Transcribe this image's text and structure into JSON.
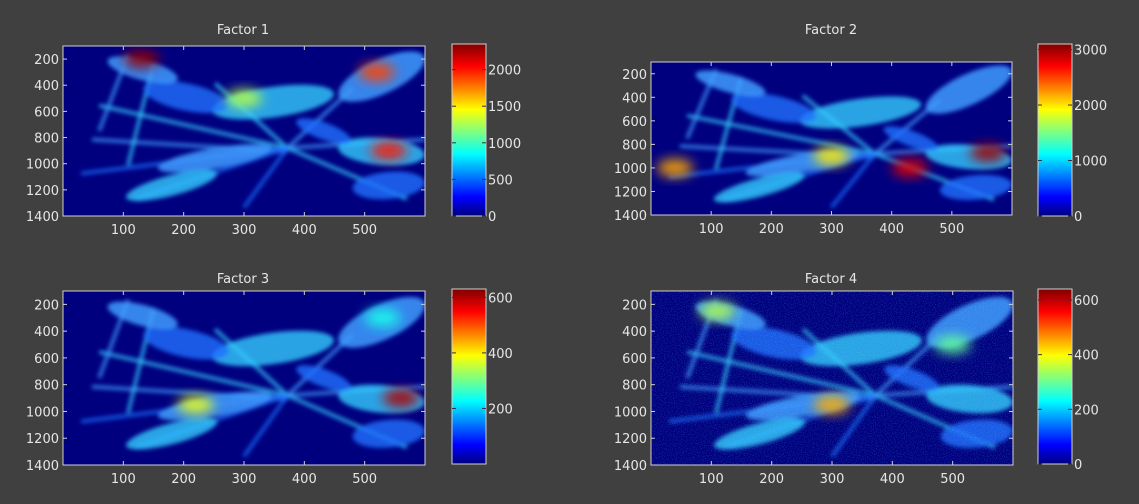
{
  "figure": {
    "background": "#404040",
    "text_color": "#e6e6e6",
    "plot_background": "#00007f"
  },
  "colormap": "jet",
  "chart_data": [
    {
      "type": "heatmap",
      "title": "Factor 1",
      "xlim": [
        0,
        600
      ],
      "ylim": [
        1400,
        100
      ],
      "xticks": [
        100,
        200,
        300,
        400,
        500
      ],
      "yticks": [
        200,
        400,
        600,
        800,
        1000,
        1200,
        1400
      ],
      "colorbar": {
        "min": 0,
        "max": 2350,
        "ticks": [
          0,
          500,
          1000,
          1500,
          2000
        ]
      },
      "hotspots": [
        {
          "x": 520,
          "y": 300,
          "value": 1900
        },
        {
          "x": 540,
          "y": 900,
          "value": 2000
        },
        {
          "x": 130,
          "y": 200,
          "value": 2300
        },
        {
          "x": 300,
          "y": 500,
          "value": 1300
        }
      ]
    },
    {
      "type": "heatmap",
      "title": "Factor 2",
      "xlim": [
        0,
        600
      ],
      "ylim": [
        1400,
        100
      ],
      "xticks": [
        100,
        200,
        300,
        400,
        500
      ],
      "yticks": [
        200,
        400,
        600,
        800,
        1000,
        1200,
        1400
      ],
      "colorbar": {
        "min": 0,
        "max": 3100,
        "ticks": [
          0,
          1000,
          2000,
          3000
        ]
      },
      "hotspots": [
        {
          "x": 560,
          "y": 870,
          "value": 3000
        },
        {
          "x": 430,
          "y": 1000,
          "value": 2800
        },
        {
          "x": 40,
          "y": 1000,
          "value": 2200
        },
        {
          "x": 300,
          "y": 900,
          "value": 2000
        }
      ]
    },
    {
      "type": "heatmap",
      "title": "Factor 3",
      "xlim": [
        0,
        600
      ],
      "ylim": [
        1400,
        100
      ],
      "xticks": [
        100,
        200,
        300,
        400,
        500
      ],
      "yticks": [
        200,
        400,
        600,
        800,
        1000,
        1200,
        1400
      ],
      "colorbar": {
        "min": 0,
        "max": 630,
        "ticks": [
          200,
          400,
          600
        ]
      },
      "hotspots": [
        {
          "x": 560,
          "y": 900,
          "value": 600
        },
        {
          "x": 220,
          "y": 950,
          "value": 380
        },
        {
          "x": 530,
          "y": 300,
          "value": 250
        }
      ]
    },
    {
      "type": "heatmap",
      "title": "Factor 4",
      "xlim": [
        0,
        600
      ],
      "ylim": [
        1400,
        100
      ],
      "xticks": [
        100,
        200,
        300,
        400,
        500
      ],
      "yticks": [
        200,
        400,
        600,
        800,
        1000,
        1200,
        1400
      ],
      "colorbar": {
        "min": 0,
        "max": 640,
        "ticks": [
          0,
          200,
          400,
          600
        ]
      },
      "hotspots": [
        {
          "x": 300,
          "y": 950,
          "value": 450
        },
        {
          "x": 110,
          "y": 250,
          "value": 350
        },
        {
          "x": 500,
          "y": 500,
          "value": 300
        }
      ]
    }
  ]
}
